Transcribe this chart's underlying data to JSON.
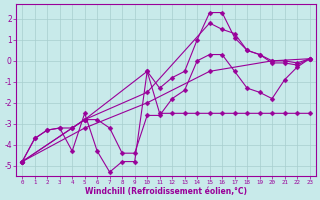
{
  "xlabel": "Windchill (Refroidissement éolien,°C)",
  "xlim": [
    -0.5,
    23.5
  ],
  "ylim": [
    -5.5,
    2.7
  ],
  "yticks": [
    -5,
    -4,
    -3,
    -2,
    -1,
    0,
    1,
    2
  ],
  "xticks": [
    0,
    1,
    2,
    3,
    4,
    5,
    6,
    7,
    8,
    9,
    10,
    11,
    12,
    13,
    14,
    15,
    16,
    17,
    18,
    19,
    20,
    21,
    22,
    23
  ],
  "bg_color": "#c8eaea",
  "line_color": "#990099",
  "grid_color": "#a8cece",
  "lines": [
    {
      "x": [
        0,
        1,
        2,
        3,
        4,
        5,
        6,
        7,
        8,
        9,
        10,
        11,
        12,
        13,
        14,
        15,
        16,
        17,
        18,
        19,
        20,
        21,
        22,
        23
      ],
      "y": [
        -4.8,
        -3.7,
        -3.3,
        -3.2,
        -4.3,
        -2.5,
        -4.3,
        -5.3,
        -4.8,
        -4.8,
        -0.5,
        -2.5,
        -2.5,
        -2.5,
        -2.5,
        -2.5,
        -2.5,
        -2.5,
        -2.5,
        -2.5,
        -2.5,
        -2.5,
        -2.5,
        -2.5
      ]
    },
    {
      "x": [
        0,
        1,
        2,
        3,
        4,
        5,
        6,
        7,
        8,
        9,
        10,
        11,
        12,
        13,
        14,
        15,
        16,
        17,
        18,
        19,
        20,
        21,
        22,
        23
      ],
      "y": [
        -4.8,
        -3.7,
        -3.3,
        -3.2,
        -3.2,
        -2.8,
        -2.8,
        -3.2,
        -4.4,
        -4.4,
        -2.6,
        -2.6,
        -1.8,
        -1.4,
        0.0,
        0.3,
        0.3,
        -0.5,
        -1.3,
        -1.5,
        -1.8,
        -0.9,
        -0.3,
        0.1
      ]
    },
    {
      "x": [
        0,
        4,
        5,
        10,
        11,
        12,
        13,
        14,
        15,
        16,
        17,
        18,
        19,
        20,
        21,
        22,
        23
      ],
      "y": [
        -4.8,
        -3.2,
        -2.8,
        -0.5,
        -1.3,
        -0.8,
        -0.5,
        1.0,
        2.3,
        2.3,
        1.1,
        0.5,
        0.3,
        -0.1,
        -0.1,
        -0.2,
        0.1
      ]
    },
    {
      "x": [
        0,
        5,
        10,
        15,
        16,
        17,
        18,
        19,
        20,
        21,
        22,
        23
      ],
      "y": [
        -4.8,
        -2.8,
        -1.5,
        1.8,
        1.5,
        1.3,
        0.5,
        0.3,
        0.0,
        0.0,
        -0.1,
        0.1
      ]
    },
    {
      "x": [
        0,
        5,
        10,
        15,
        20,
        23
      ],
      "y": [
        -4.8,
        -3.2,
        -2.0,
        -0.5,
        0.0,
        0.1
      ]
    }
  ]
}
